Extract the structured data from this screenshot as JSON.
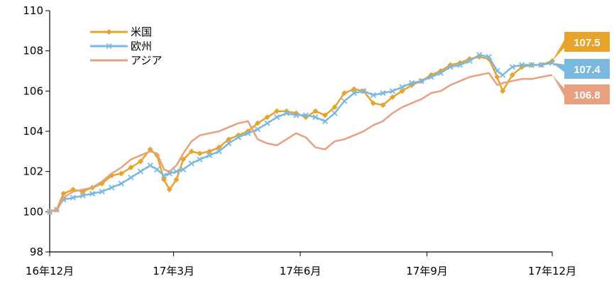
{
  "chart_data": {
    "type": "line",
    "title": "",
    "xlabel": "",
    "ylabel": "",
    "ylim": [
      98,
      110
    ],
    "yticks": [
      "98",
      "100",
      "102",
      "104",
      "106",
      "108",
      "110"
    ],
    "xlim": [
      "2016-12",
      "2017-12"
    ],
    "x_ticks": [
      {
        "x": "2016-12",
        "label": "16年12月"
      },
      {
        "x": "2017-03",
        "label": "17年3月"
      },
      {
        "x": "2017-06",
        "label": "17年6月"
      },
      {
        "x": "2017-09",
        "label": "17年9月"
      },
      {
        "x": "2017-12",
        "label": "17年12月"
      }
    ],
    "grid": false,
    "legend_position": "top-left",
    "series": [
      {
        "name": "米国",
        "color": "#E8A32B",
        "marker": "diamond",
        "end_label": "107.5",
        "points": [
          [
            "2016-12-01",
            100.0
          ],
          [
            "2016-12-06",
            100.1
          ],
          [
            "2016-12-11",
            100.9
          ],
          [
            "2016-12-18",
            101.1
          ],
          [
            "2016-12-25",
            101.0
          ],
          [
            "2017-01-01",
            101.2
          ],
          [
            "2017-01-08",
            101.4
          ],
          [
            "2017-01-15",
            101.8
          ],
          [
            "2017-01-22",
            101.9
          ],
          [
            "2017-01-29",
            102.2
          ],
          [
            "2017-02-05",
            102.5
          ],
          [
            "2017-02-12",
            103.1
          ],
          [
            "2017-02-17",
            102.8
          ],
          [
            "2017-02-22",
            101.6
          ],
          [
            "2017-02-26",
            101.1
          ],
          [
            "2017-03-03",
            101.6
          ],
          [
            "2017-03-08",
            102.6
          ],
          [
            "2017-03-14",
            103.0
          ],
          [
            "2017-03-20",
            102.9
          ],
          [
            "2017-03-27",
            103.0
          ],
          [
            "2017-04-03",
            103.2
          ],
          [
            "2017-04-10",
            103.6
          ],
          [
            "2017-04-17",
            103.8
          ],
          [
            "2017-04-24",
            104.0
          ],
          [
            "2017-05-01",
            104.4
          ],
          [
            "2017-05-08",
            104.7
          ],
          [
            "2017-05-15",
            105.0
          ],
          [
            "2017-05-22",
            105.0
          ],
          [
            "2017-05-29",
            104.9
          ],
          [
            "2017-06-05",
            104.7
          ],
          [
            "2017-06-12",
            105.0
          ],
          [
            "2017-06-19",
            104.8
          ],
          [
            "2017-06-26",
            105.2
          ],
          [
            "2017-07-03",
            105.9
          ],
          [
            "2017-07-10",
            106.1
          ],
          [
            "2017-07-17",
            106.0
          ],
          [
            "2017-07-24",
            105.4
          ],
          [
            "2017-07-31",
            105.3
          ],
          [
            "2017-08-07",
            105.7
          ],
          [
            "2017-08-14",
            106.0
          ],
          [
            "2017-08-21",
            106.3
          ],
          [
            "2017-08-28",
            106.5
          ],
          [
            "2017-09-04",
            106.8
          ],
          [
            "2017-09-11",
            107.0
          ],
          [
            "2017-09-18",
            107.3
          ],
          [
            "2017-09-25",
            107.4
          ],
          [
            "2017-10-02",
            107.6
          ],
          [
            "2017-10-09",
            107.7
          ],
          [
            "2017-10-16",
            107.6
          ],
          [
            "2017-10-22",
            106.7
          ],
          [
            "2017-10-26",
            106.0
          ],
          [
            "2017-11-02",
            106.8
          ],
          [
            "2017-11-09",
            107.2
          ],
          [
            "2017-11-16",
            107.3
          ],
          [
            "2017-11-23",
            107.3
          ],
          [
            "2017-12-01",
            107.5
          ]
        ]
      },
      {
        "name": "欧州",
        "color": "#7AB8E0",
        "marker": "x",
        "end_label": "107.4",
        "points": [
          [
            "2016-12-01",
            100.0
          ],
          [
            "2016-12-06",
            100.1
          ],
          [
            "2016-12-11",
            100.6
          ],
          [
            "2016-12-18",
            100.7
          ],
          [
            "2016-12-25",
            100.8
          ],
          [
            "2017-01-01",
            100.9
          ],
          [
            "2017-01-08",
            101.0
          ],
          [
            "2017-01-15",
            101.2
          ],
          [
            "2017-01-22",
            101.4
          ],
          [
            "2017-01-29",
            101.7
          ],
          [
            "2017-02-05",
            102.0
          ],
          [
            "2017-02-12",
            102.3
          ],
          [
            "2017-02-17",
            102.1
          ],
          [
            "2017-02-22",
            101.8
          ],
          [
            "2017-02-26",
            101.9
          ],
          [
            "2017-03-03",
            102.0
          ],
          [
            "2017-03-08",
            102.1
          ],
          [
            "2017-03-14",
            102.4
          ],
          [
            "2017-03-20",
            102.6
          ],
          [
            "2017-03-27",
            102.8
          ],
          [
            "2017-04-03",
            103.0
          ],
          [
            "2017-04-10",
            103.4
          ],
          [
            "2017-04-17",
            103.7
          ],
          [
            "2017-04-24",
            103.9
          ],
          [
            "2017-05-01",
            104.1
          ],
          [
            "2017-05-08",
            104.4
          ],
          [
            "2017-05-15",
            104.7
          ],
          [
            "2017-05-22",
            104.9
          ],
          [
            "2017-05-29",
            104.8
          ],
          [
            "2017-06-05",
            104.8
          ],
          [
            "2017-06-12",
            104.7
          ],
          [
            "2017-06-19",
            104.5
          ],
          [
            "2017-06-26",
            104.9
          ],
          [
            "2017-07-03",
            105.5
          ],
          [
            "2017-07-10",
            105.9
          ],
          [
            "2017-07-17",
            106.0
          ],
          [
            "2017-07-24",
            105.8
          ],
          [
            "2017-07-31",
            105.9
          ],
          [
            "2017-08-07",
            106.0
          ],
          [
            "2017-08-14",
            106.2
          ],
          [
            "2017-08-21",
            106.4
          ],
          [
            "2017-08-28",
            106.5
          ],
          [
            "2017-09-04",
            106.7
          ],
          [
            "2017-09-11",
            106.9
          ],
          [
            "2017-09-18",
            107.2
          ],
          [
            "2017-09-25",
            107.3
          ],
          [
            "2017-10-02",
            107.5
          ],
          [
            "2017-10-09",
            107.8
          ],
          [
            "2017-10-16",
            107.7
          ],
          [
            "2017-10-22",
            107.0
          ],
          [
            "2017-10-26",
            106.8
          ],
          [
            "2017-11-02",
            107.2
          ],
          [
            "2017-11-09",
            107.3
          ],
          [
            "2017-11-16",
            107.3
          ],
          [
            "2017-11-23",
            107.3
          ],
          [
            "2017-12-01",
            107.4
          ]
        ]
      },
      {
        "name": "アジア",
        "color": "#E8A080",
        "marker": "none",
        "end_label": "106.8",
        "points": [
          [
            "2016-12-01",
            100.0
          ],
          [
            "2016-12-06",
            100.1
          ],
          [
            "2016-12-11",
            100.7
          ],
          [
            "2016-12-18",
            101.0
          ],
          [
            "2016-12-25",
            101.1
          ],
          [
            "2017-01-01",
            101.2
          ],
          [
            "2017-01-08",
            101.5
          ],
          [
            "2017-01-15",
            101.9
          ],
          [
            "2017-01-22",
            102.2
          ],
          [
            "2017-01-29",
            102.6
          ],
          [
            "2017-02-05",
            102.8
          ],
          [
            "2017-02-12",
            103.0
          ],
          [
            "2017-02-17",
            102.9
          ],
          [
            "2017-02-22",
            102.1
          ],
          [
            "2017-02-26",
            102.0
          ],
          [
            "2017-03-03",
            102.3
          ],
          [
            "2017-03-08",
            102.9
          ],
          [
            "2017-03-14",
            103.5
          ],
          [
            "2017-03-20",
            103.8
          ],
          [
            "2017-03-27",
            103.9
          ],
          [
            "2017-04-03",
            104.0
          ],
          [
            "2017-04-10",
            104.2
          ],
          [
            "2017-04-17",
            104.4
          ],
          [
            "2017-04-24",
            104.5
          ],
          [
            "2017-05-01",
            103.6
          ],
          [
            "2017-05-08",
            103.4
          ],
          [
            "2017-05-15",
            103.3
          ],
          [
            "2017-05-22",
            103.6
          ],
          [
            "2017-05-29",
            103.9
          ],
          [
            "2017-06-05",
            103.7
          ],
          [
            "2017-06-12",
            103.2
          ],
          [
            "2017-06-19",
            103.1
          ],
          [
            "2017-06-26",
            103.5
          ],
          [
            "2017-07-03",
            103.6
          ],
          [
            "2017-07-10",
            103.8
          ],
          [
            "2017-07-17",
            104.0
          ],
          [
            "2017-07-24",
            104.3
          ],
          [
            "2017-07-31",
            104.5
          ],
          [
            "2017-08-07",
            104.9
          ],
          [
            "2017-08-14",
            105.2
          ],
          [
            "2017-08-21",
            105.4
          ],
          [
            "2017-08-28",
            105.6
          ],
          [
            "2017-09-04",
            105.9
          ],
          [
            "2017-09-11",
            106.0
          ],
          [
            "2017-09-18",
            106.3
          ],
          [
            "2017-09-25",
            106.5
          ],
          [
            "2017-10-02",
            106.7
          ],
          [
            "2017-10-09",
            106.8
          ],
          [
            "2017-10-16",
            106.9
          ],
          [
            "2017-10-22",
            106.3
          ],
          [
            "2017-10-26",
            106.4
          ],
          [
            "2017-11-02",
            106.5
          ],
          [
            "2017-11-09",
            106.6
          ],
          [
            "2017-11-16",
            106.6
          ],
          [
            "2017-11-23",
            106.7
          ],
          [
            "2017-12-01",
            106.8
          ]
        ]
      }
    ]
  }
}
